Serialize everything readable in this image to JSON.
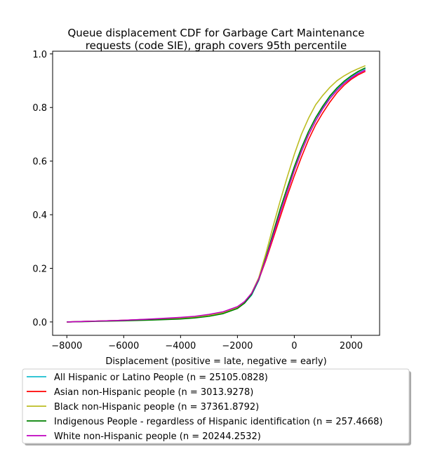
{
  "chart_data": {
    "type": "line",
    "title_line1": "Queue displacement CDF for Garbage Cart Maintenance",
    "title_line2": "requests (code SIE), graph covers 95th percentile",
    "xlabel": "Displacement (positive = late, negative = early)",
    "ylabel": "",
    "xlim": [
      -8500,
      3000
    ],
    "ylim": [
      -0.05,
      1.01
    ],
    "xticks": [
      -8000,
      -6000,
      -4000,
      -2000,
      0,
      2000
    ],
    "xtick_labels": [
      "−8000",
      "−6000",
      "−4000",
      "−2000",
      "0",
      "2000"
    ],
    "yticks": [
      0.0,
      0.2,
      0.4,
      0.6,
      0.8,
      1.0
    ],
    "ytick_labels": [
      "0.0",
      "0.2",
      "0.4",
      "0.6",
      "0.8",
      "1.0"
    ],
    "grid": false,
    "legend_position": "below plot",
    "x": [
      -8000,
      -7000,
      -6000,
      -5000,
      -4000,
      -3500,
      -3000,
      -2500,
      -2000,
      -1750,
      -1500,
      -1250,
      -1000,
      -750,
      -500,
      -250,
      0,
      250,
      500,
      750,
      1000,
      1250,
      1500,
      1750,
      2000,
      2250,
      2500
    ],
    "series": [
      {
        "name": "All Hispanic or Latino People (n = 25105.0828)",
        "color": "#17becf",
        "values": [
          0.0,
          0.003,
          0.006,
          0.01,
          0.015,
          0.019,
          0.025,
          0.035,
          0.053,
          0.07,
          0.1,
          0.155,
          0.24,
          0.33,
          0.42,
          0.5,
          0.58,
          0.65,
          0.71,
          0.76,
          0.8,
          0.84,
          0.87,
          0.895,
          0.915,
          0.932,
          0.945
        ]
      },
      {
        "name": "Asian non-Hispanic people (n = 3013.9278)",
        "color": "#ff0000",
        "values": [
          0.0,
          0.003,
          0.006,
          0.01,
          0.016,
          0.02,
          0.027,
          0.037,
          0.056,
          0.075,
          0.106,
          0.158,
          0.23,
          0.31,
          0.39,
          0.47,
          0.545,
          0.615,
          0.68,
          0.735,
          0.78,
          0.82,
          0.855,
          0.883,
          0.905,
          0.922,
          0.935
        ]
      },
      {
        "name": "Black non-Hispanic people (n = 37361.8792)",
        "color": "#bcbd22",
        "values": [
          0.0,
          0.003,
          0.006,
          0.01,
          0.015,
          0.019,
          0.025,
          0.035,
          0.054,
          0.073,
          0.108,
          0.165,
          0.255,
          0.355,
          0.45,
          0.54,
          0.625,
          0.7,
          0.76,
          0.81,
          0.845,
          0.875,
          0.9,
          0.918,
          0.933,
          0.945,
          0.956
        ]
      },
      {
        "name": "Indigenous People - regardless of Hispanic identification (n = 257.4668)",
        "color": "#008000",
        "values": [
          0.0,
          0.002,
          0.004,
          0.007,
          0.011,
          0.015,
          0.021,
          0.031,
          0.05,
          0.07,
          0.103,
          0.158,
          0.24,
          0.33,
          0.42,
          0.5,
          0.578,
          0.648,
          0.71,
          0.762,
          0.805,
          0.843,
          0.873,
          0.898,
          0.918,
          0.935,
          0.948
        ]
      },
      {
        "name": "White non-Hispanic people (n = 20244.2532)",
        "color": "#bf00bf",
        "values": [
          0.0,
          0.003,
          0.006,
          0.011,
          0.017,
          0.021,
          0.028,
          0.038,
          0.057,
          0.076,
          0.107,
          0.16,
          0.235,
          0.32,
          0.405,
          0.485,
          0.565,
          0.635,
          0.698,
          0.75,
          0.795,
          0.833,
          0.864,
          0.89,
          0.91,
          0.927,
          0.94
        ]
      }
    ]
  }
}
